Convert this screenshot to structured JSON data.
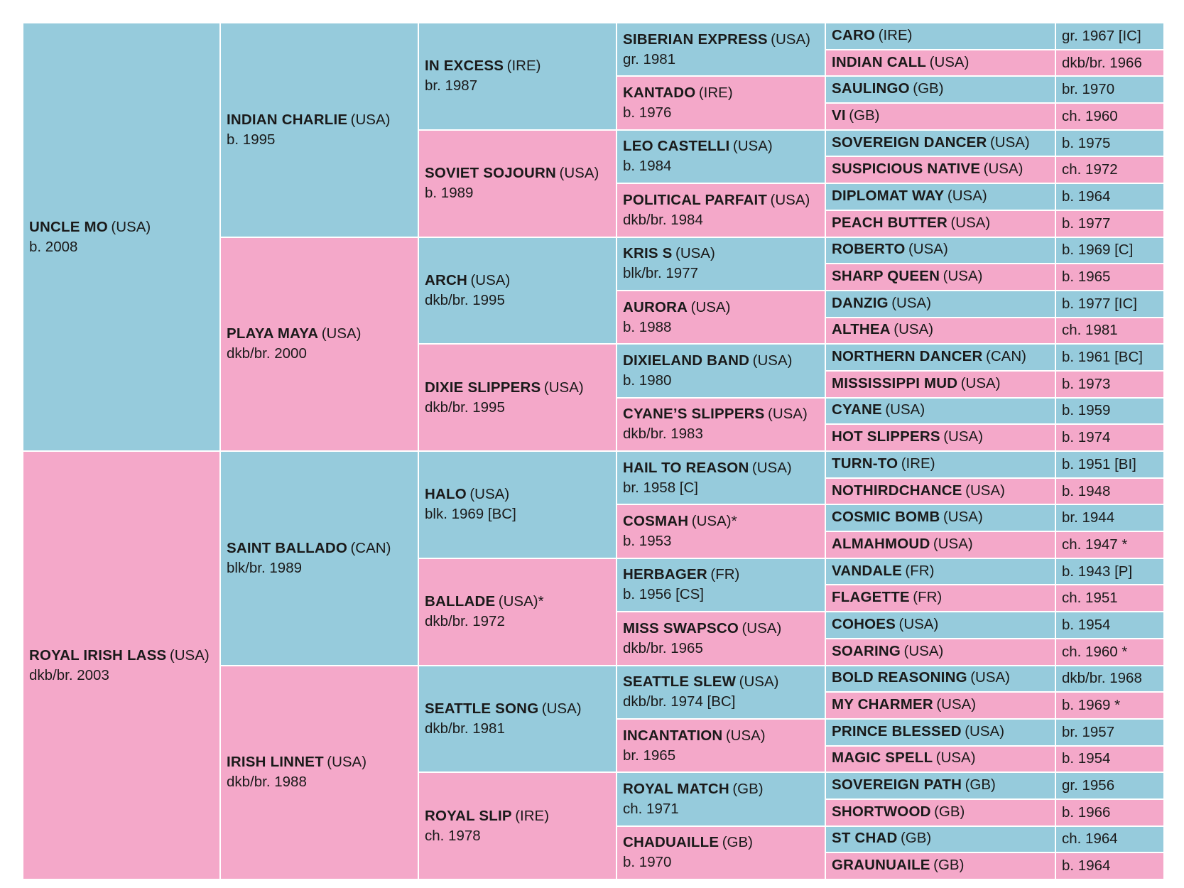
{
  "gen1": [
    {
      "name": "UNCLE MO",
      "country": "(USA)",
      "sub": "b. 2008",
      "sex": "male"
    },
    {
      "name": "ROYAL IRISH LASS",
      "country": "(USA)",
      "sub": "dkb/br. 2003",
      "sex": "female"
    }
  ],
  "gen2": [
    {
      "name": "INDIAN CHARLIE",
      "country": "(USA)",
      "sub": "b. 1995",
      "sex": "male"
    },
    {
      "name": "PLAYA MAYA",
      "country": "(USA)",
      "sub": "dkb/br. 2000",
      "sex": "female"
    },
    {
      "name": "SAINT BALLADO",
      "country": "(CAN)",
      "sub": "blk/br. 1989",
      "sex": "male"
    },
    {
      "name": "IRISH LINNET",
      "country": "(USA)",
      "sub": "dkb/br. 1988",
      "sex": "female"
    }
  ],
  "gen3": [
    {
      "name": "IN EXCESS",
      "country": "(IRE)",
      "sub": "br. 1987",
      "sex": "male"
    },
    {
      "name": "SOVIET SOJOURN",
      "country": "(USA)",
      "sub": "b. 1989",
      "sex": "female"
    },
    {
      "name": "ARCH",
      "country": "(USA)",
      "sub": "dkb/br. 1995",
      "sex": "male"
    },
    {
      "name": "DIXIE SLIPPERS",
      "country": "(USA)",
      "sub": "dkb/br. 1995",
      "sex": "female"
    },
    {
      "name": "HALO",
      "country": "(USA)",
      "sub": "blk. 1969 [BC]",
      "sex": "male"
    },
    {
      "name": "BALLADE",
      "country": "(USA)*",
      "sub": "dkb/br. 1972",
      "sex": "female"
    },
    {
      "name": "SEATTLE SONG",
      "country": "(USA)",
      "sub": "dkb/br. 1981",
      "sex": "male"
    },
    {
      "name": "ROYAL SLIP",
      "country": "(IRE)",
      "sub": "ch. 1978",
      "sex": "female"
    }
  ],
  "gen4": [
    {
      "name": "SIBERIAN EXPRESS",
      "country": "(USA)",
      "sub": "gr. 1981",
      "sex": "male"
    },
    {
      "name": "KANTADO",
      "country": "(IRE)",
      "sub": "b. 1976",
      "sex": "female"
    },
    {
      "name": "LEO CASTELLI",
      "country": "(USA)",
      "sub": "b. 1984",
      "sex": "male"
    },
    {
      "name": "POLITICAL PARFAIT",
      "country": "(USA)",
      "sub": "dkb/br. 1984",
      "sex": "female"
    },
    {
      "name": "KRIS S",
      "country": "(USA)",
      "sub": "blk/br. 1977",
      "sex": "male"
    },
    {
      "name": "AURORA",
      "country": "(USA)",
      "sub": "b. 1988",
      "sex": "female"
    },
    {
      "name": "DIXIELAND BAND",
      "country": "(USA)",
      "sub": "b. 1980",
      "sex": "male"
    },
    {
      "name": "CYANE’S SLIPPERS",
      "country": "(USA)",
      "sub": "dkb/br. 1983",
      "sex": "female"
    },
    {
      "name": "HAIL TO REASON",
      "country": "(USA)",
      "sub": "br. 1958 [C]",
      "sex": "male"
    },
    {
      "name": "COSMAH",
      "country": "(USA)*",
      "sub": "b. 1953",
      "sex": "female"
    },
    {
      "name": "HERBAGER",
      "country": "(FR)",
      "sub": "b. 1956 [CS]",
      "sex": "male"
    },
    {
      "name": "MISS SWAPSCO",
      "country": "(USA)",
      "sub": "dkb/br. 1965",
      "sex": "female"
    },
    {
      "name": "SEATTLE SLEW",
      "country": "(USA)",
      "sub": "dkb/br. 1974 [BC]",
      "sex": "male"
    },
    {
      "name": "INCANTATION",
      "country": "(USA)",
      "sub": "br. 1965",
      "sex": "female"
    },
    {
      "name": "ROYAL MATCH",
      "country": "(GB)",
      "sub": "ch. 1971",
      "sex": "male"
    },
    {
      "name": "CHADUAILLE",
      "country": "(GB)",
      "sub": "b. 1970",
      "sex": "female"
    }
  ],
  "gen5": [
    {
      "name": "CARO",
      "country": "(IRE)",
      "sub": "gr. 1967 [IC]",
      "sex": "male"
    },
    {
      "name": "INDIAN CALL",
      "country": "(USA)",
      "sub": "dkb/br. 1966",
      "sex": "female"
    },
    {
      "name": "SAULINGO",
      "country": "(GB)",
      "sub": "br. 1970",
      "sex": "male"
    },
    {
      "name": "VI",
      "country": "(GB)",
      "sub": "ch. 1960",
      "sex": "female"
    },
    {
      "name": "SOVEREIGN DANCER",
      "country": "(USA)",
      "sub": "b. 1975",
      "sex": "male"
    },
    {
      "name": "SUSPICIOUS NATIVE",
      "country": "(USA)",
      "sub": "ch. 1972",
      "sex": "female"
    },
    {
      "name": "DIPLOMAT WAY",
      "country": "(USA)",
      "sub": "b. 1964",
      "sex": "male"
    },
    {
      "name": "PEACH BUTTER",
      "country": "(USA)",
      "sub": "b. 1977",
      "sex": "female"
    },
    {
      "name": "ROBERTO",
      "country": "(USA)",
      "sub": "b. 1969 [C]",
      "sex": "male"
    },
    {
      "name": "SHARP QUEEN",
      "country": "(USA)",
      "sub": "b. 1965",
      "sex": "female"
    },
    {
      "name": "DANZIG",
      "country": "(USA)",
      "sub": "b. 1977 [IC]",
      "sex": "male"
    },
    {
      "name": "ALTHEA",
      "country": "(USA)",
      "sub": "ch. 1981",
      "sex": "female"
    },
    {
      "name": "NORTHERN DANCER",
      "country": "(CAN)",
      "sub": "b. 1961 [BC]",
      "sex": "male"
    },
    {
      "name": "MISSISSIPPI MUD",
      "country": "(USA)",
      "sub": "b. 1973",
      "sex": "female"
    },
    {
      "name": "CYANE",
      "country": "(USA)",
      "sub": "b. 1959",
      "sex": "male"
    },
    {
      "name": "HOT SLIPPERS",
      "country": "(USA)",
      "sub": "b. 1974",
      "sex": "female"
    },
    {
      "name": "TURN-TO",
      "country": "(IRE)",
      "sub": "b. 1951 [BI]",
      "sex": "male"
    },
    {
      "name": "NOTHIRDCHANCE",
      "country": "(USA)",
      "sub": "b. 1948",
      "sex": "female"
    },
    {
      "name": "COSMIC BOMB",
      "country": "(USA)",
      "sub": "br. 1944",
      "sex": "male"
    },
    {
      "name": "ALMAHMOUD",
      "country": "(USA)",
      "sub": "ch. 1947 *",
      "sex": "female"
    },
    {
      "name": "VANDALE",
      "country": "(FR)",
      "sub": "b. 1943 [P]",
      "sex": "male"
    },
    {
      "name": "FLAGETTE",
      "country": "(FR)",
      "sub": "ch. 1951",
      "sex": "female"
    },
    {
      "name": "COHOES",
      "country": "(USA)",
      "sub": "b. 1954",
      "sex": "male"
    },
    {
      "name": "SOARING",
      "country": "(USA)",
      "sub": "ch. 1960 *",
      "sex": "female"
    },
    {
      "name": "BOLD REASONING",
      "country": "(USA)",
      "sub": "dkb/br. 1968",
      "sex": "male"
    },
    {
      "name": "MY CHARMER",
      "country": "(USA)",
      "sub": "b. 1969 *",
      "sex": "female"
    },
    {
      "name": "PRINCE BLESSED",
      "country": "(USA)",
      "sub": "br. 1957",
      "sex": "male"
    },
    {
      "name": "MAGIC SPELL",
      "country": "(USA)",
      "sub": "b. 1954",
      "sex": "female"
    },
    {
      "name": "SOVEREIGN PATH",
      "country": "(GB)",
      "sub": "gr. 1956",
      "sex": "male"
    },
    {
      "name": "SHORTWOOD",
      "country": "(GB)",
      "sub": "b. 1966",
      "sex": "female"
    },
    {
      "name": "ST CHAD",
      "country": "(GB)",
      "sub": "ch. 1964",
      "sex": "male"
    },
    {
      "name": "GRAUNUAILE",
      "country": "(GB)",
      "sub": "b. 1964",
      "sex": "female"
    }
  ],
  "colors": {
    "male": "#96cbdc",
    "female": "#f4a8c9"
  }
}
